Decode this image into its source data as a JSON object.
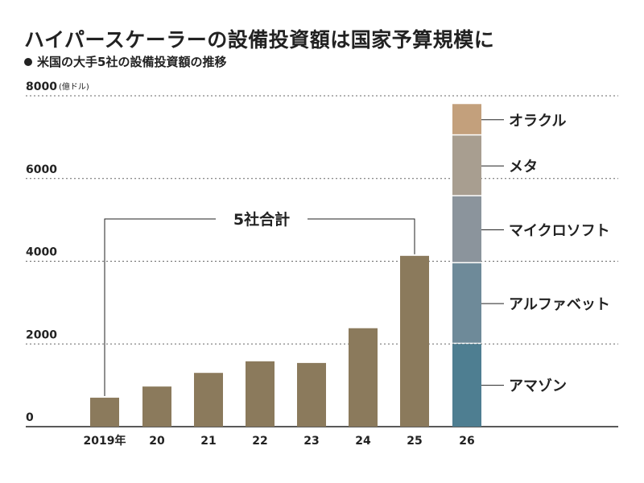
{
  "title": "ハイパースケーラーの設備投資額は国家予算規模に",
  "subtitle": "米国の大手5社の設備投資額の推移",
  "colors": {
    "bar": "#8b7a5c",
    "gridline": "#666666",
    "axis": "#222222",
    "amazon": "#4e7e91",
    "alphabet": "#6e8a99",
    "microsoft": "#8b949c",
    "meta": "#a89e90",
    "oracle": "#c3a07c"
  },
  "chart_data": {
    "type": "bar",
    "unit_label": "(億ドル)",
    "categories": [
      "2019年",
      "20",
      "21",
      "22",
      "23",
      "24",
      "25",
      "26"
    ],
    "values": [
      700,
      970,
      1300,
      1580,
      1540,
      2380,
      4130,
      null
    ],
    "ylim": [
      0,
      8000
    ],
    "yticks": [
      "0",
      "2000",
      "4000",
      "6000",
      "8000"
    ],
    "grid": true,
    "annotation": "5社合計",
    "stacked_2026": [
      {
        "name": "アマゾン",
        "value": 2000,
        "color": "#4e7e91"
      },
      {
        "name": "アルファベット",
        "value": 1950,
        "color": "#6e8a99"
      },
      {
        "name": "マイクロソフト",
        "value": 1620,
        "color": "#8b949c"
      },
      {
        "name": "メタ",
        "value": 1470,
        "color": "#a89e90"
      },
      {
        "name": "オラクル",
        "value": 760,
        "color": "#c3a07c"
      }
    ]
  }
}
